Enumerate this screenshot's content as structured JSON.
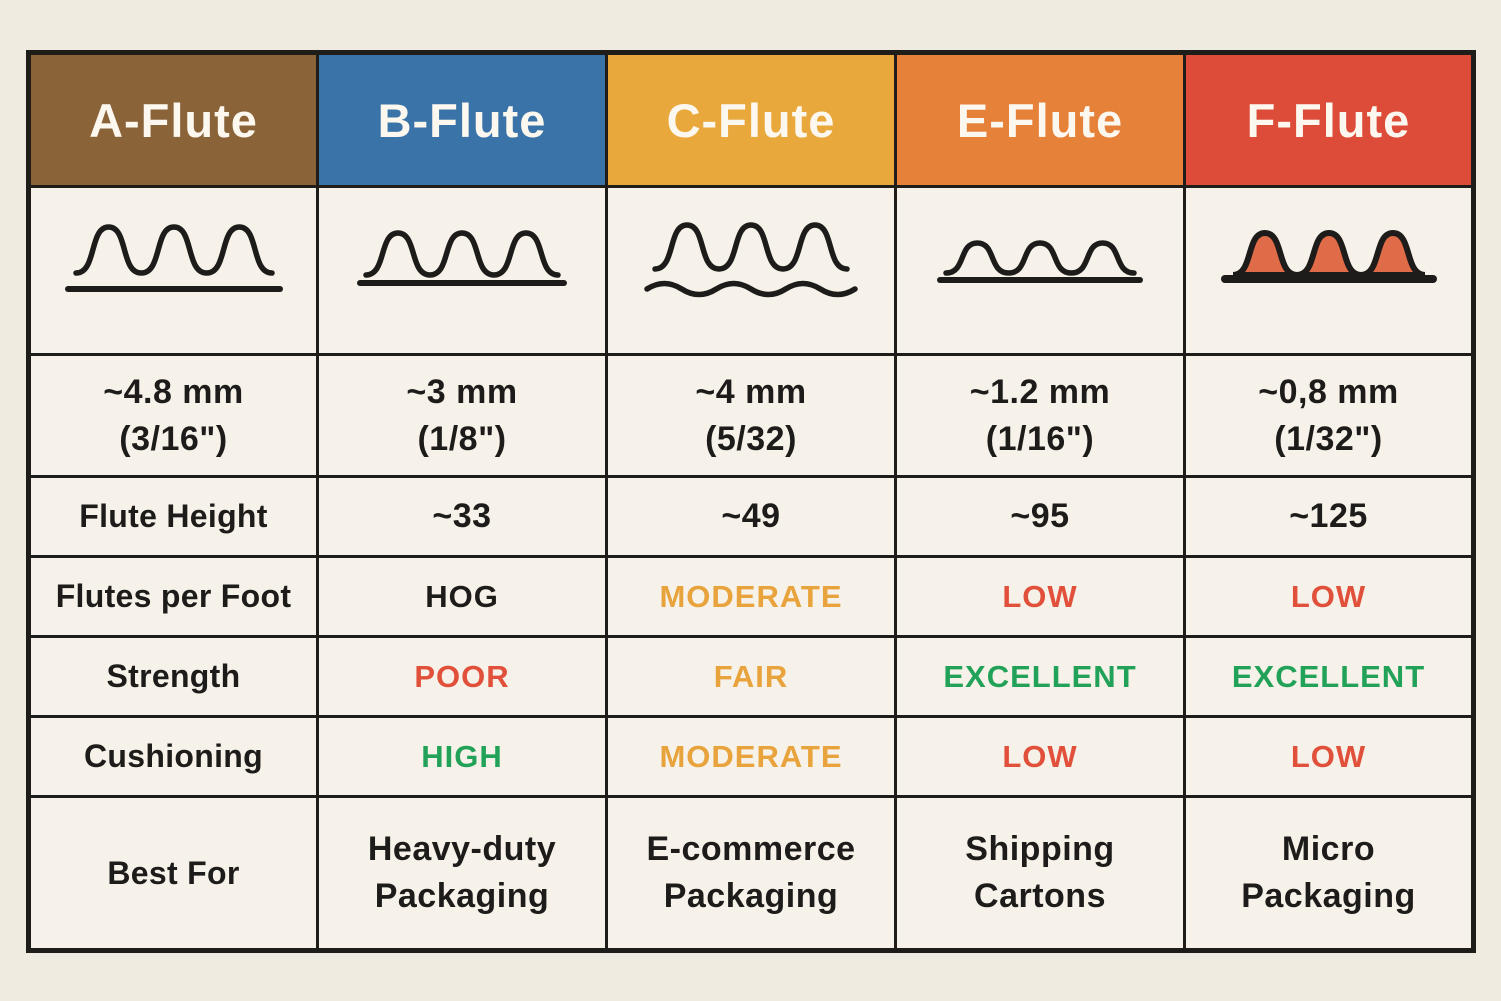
{
  "palette": {
    "page_bg": "#f0ebe1",
    "cell_bg": "#f6f2e9",
    "border": "#1f1d1a",
    "text": "#1d1c1a",
    "header_text": "#fcf8ef",
    "good": "#22a259",
    "warn": "#e8a33c",
    "bad": "#e0503a",
    "default": "#1d1c1a",
    "wave_stroke": "#1d1c1a",
    "wave_fill": "#e06b48"
  },
  "header": {
    "labels": [
      "A-Flute",
      "B-Flute",
      "C-Flute",
      "E-Flute",
      "F-Flute"
    ],
    "colors": [
      "#8b6338",
      "#3a73a7",
      "#e9a83c",
      "#e6813a",
      "#dd4c39"
    ],
    "keys": [
      "a-flute",
      "b-flute",
      "c-flute",
      "e-flute",
      "f-flute"
    ]
  },
  "wave_row": {
    "styles": [
      "tall-arches-liner-gap",
      "arches-on-liner",
      "arches-over-wavy-liner",
      "low-arches-on-liner",
      "filled-arches-on-liner"
    ]
  },
  "rows": [
    {
      "name": "thickness",
      "cells": [
        {
          "lines": [
            "~4.8 mm",
            "(3/16\")"
          ],
          "tone": "default"
        },
        {
          "lines": [
            "~3 mm",
            "(1/8\")"
          ],
          "tone": "default"
        },
        {
          "lines": [
            "~4 mm",
            "(5/32)"
          ],
          "tone": "default"
        },
        {
          "lines": [
            "~1.2 mm",
            "(1/16\")"
          ],
          "tone": "default"
        },
        {
          "lines": [
            "~0,8 mm",
            "(1/32\")"
          ],
          "tone": "default"
        }
      ]
    },
    {
      "name": "flute-height",
      "cells": [
        {
          "lines": [
            "Flute Height"
          ],
          "tone": "default",
          "is_label": true
        },
        {
          "lines": [
            "~33"
          ],
          "tone": "default"
        },
        {
          "lines": [
            "~49"
          ],
          "tone": "default"
        },
        {
          "lines": [
            "~95"
          ],
          "tone": "default"
        },
        {
          "lines": [
            "~125"
          ],
          "tone": "default"
        }
      ]
    },
    {
      "name": "flutes-per-foot",
      "cells": [
        {
          "lines": [
            "Flutes per Foot"
          ],
          "tone": "default",
          "is_label": true
        },
        {
          "lines": [
            "HOG"
          ],
          "tone": "default",
          "is_status": true
        },
        {
          "lines": [
            "MODERATE"
          ],
          "tone": "warn",
          "is_status": true
        },
        {
          "lines": [
            "LOW"
          ],
          "tone": "bad",
          "is_status": true
        },
        {
          "lines": [
            "LOW"
          ],
          "tone": "bad",
          "is_status": true
        }
      ]
    },
    {
      "name": "strength",
      "cells": [
        {
          "lines": [
            "Strength"
          ],
          "tone": "default",
          "is_label": true
        },
        {
          "lines": [
            "POOR"
          ],
          "tone": "bad",
          "is_status": true
        },
        {
          "lines": [
            "FAIR"
          ],
          "tone": "warn",
          "is_status": true
        },
        {
          "lines": [
            "EXCELLENT"
          ],
          "tone": "good",
          "is_status": true
        },
        {
          "lines": [
            "EXCELLENT"
          ],
          "tone": "good",
          "is_status": true
        }
      ]
    },
    {
      "name": "cushioning",
      "cells": [
        {
          "lines": [
            "Cushioning"
          ],
          "tone": "default",
          "is_label": true
        },
        {
          "lines": [
            "HIGH"
          ],
          "tone": "good",
          "is_status": true
        },
        {
          "lines": [
            "MODERATE"
          ],
          "tone": "warn",
          "is_status": true
        },
        {
          "lines": [
            "LOW"
          ],
          "tone": "bad",
          "is_status": true
        },
        {
          "lines": [
            "LOW"
          ],
          "tone": "bad",
          "is_status": true
        }
      ]
    },
    {
      "name": "best-for",
      "cells": [
        {
          "lines": [
            "Best For"
          ],
          "tone": "default",
          "is_label": true
        },
        {
          "lines": [
            "Heavy-duty",
            "Packaging"
          ],
          "tone": "default"
        },
        {
          "lines": [
            "E-commerce",
            "Packaging"
          ],
          "tone": "default"
        },
        {
          "lines": [
            "Shipping",
            "Cartons"
          ],
          "tone": "default"
        },
        {
          "lines": [
            "Micro",
            "Packaging"
          ],
          "tone": "default"
        }
      ]
    }
  ],
  "row_heights": {
    "header": 134,
    "waves": 168,
    "thickness": 122,
    "flute-height": 80,
    "flutes-per-foot": 80,
    "strength": 80,
    "cushioning": 80,
    "best-for": 154
  },
  "chart_data": {
    "type": "table",
    "title": "Corrugated flute types comparison",
    "columns": [
      "A-Flute",
      "B-Flute",
      "C-Flute",
      "E-Flute",
      "F-Flute"
    ],
    "rows": [
      {
        "cells": [
          "~4.8 mm (3/16\")",
          "~3 mm (1/8\")",
          "~4 mm (5/32)",
          "~1.2 mm (1/16\")",
          "~0,8 mm (1/32\")"
        ]
      },
      {
        "cells": [
          "Flute Height",
          "~33",
          "~49",
          "~95",
          "~125"
        ]
      },
      {
        "cells": [
          "Flutes per Foot",
          "HOG",
          "MODERATE",
          "LOW",
          "LOW"
        ]
      },
      {
        "cells": [
          "Strength",
          "POOR",
          "FAIR",
          "EXCELLENT",
          "EXCELLENT"
        ]
      },
      {
        "cells": [
          "Cushioning",
          "HIGH",
          "MODERATE",
          "LOW",
          "LOW"
        ]
      },
      {
        "cells": [
          "Best For",
          "Heavy-duty Packaging",
          "E-commerce Packaging",
          "Shipping Cartons",
          "Micro Packaging"
        ]
      }
    ]
  }
}
